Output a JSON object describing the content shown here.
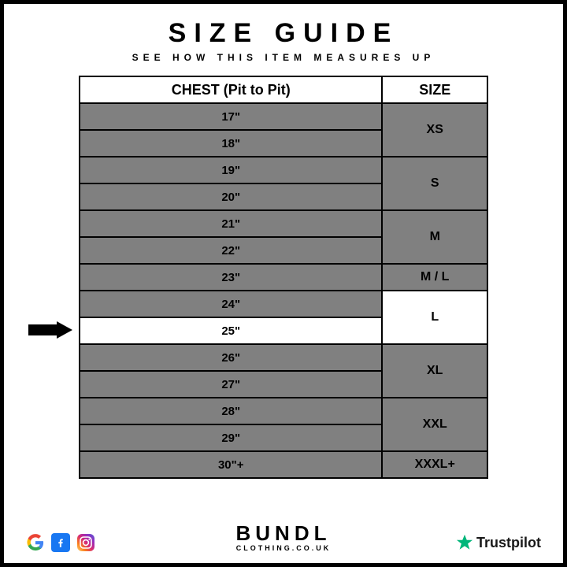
{
  "title": "SIZE GUIDE",
  "subtitle": "SEE HOW THIS ITEM MEASURES UP",
  "table": {
    "headers": {
      "chest": "CHEST (Pit to Pit)",
      "size": "SIZE"
    },
    "colors": {
      "cell_bg": "#808080",
      "highlight_bg": "#ffffff",
      "border": "#000000",
      "text": "#000000"
    },
    "highlight_row_index": 8,
    "rows": [
      {
        "chest": "17\"",
        "size": "XS",
        "size_rowspan": 2
      },
      {
        "chest": "18\""
      },
      {
        "chest": "19\"",
        "size": "S",
        "size_rowspan": 2
      },
      {
        "chest": "20\""
      },
      {
        "chest": "21\"",
        "size": "M",
        "size_rowspan": 2
      },
      {
        "chest": "22\""
      },
      {
        "chest": "23\"",
        "size": "M / L",
        "size_rowspan": 1
      },
      {
        "chest": "24\"",
        "size": "L",
        "size_rowspan": 2,
        "size_highlight": true
      },
      {
        "chest": "25\"",
        "highlight": true
      },
      {
        "chest": "26\"",
        "size": "XL",
        "size_rowspan": 2
      },
      {
        "chest": "27\""
      },
      {
        "chest": "28\"",
        "size": "XXL",
        "size_rowspan": 2
      },
      {
        "chest": "29\""
      },
      {
        "chest": "30\"+",
        "size": "XXXL+",
        "size_rowspan": 1
      }
    ]
  },
  "brand": {
    "line1": "BUNDL",
    "line2": "CLOTHING.CO.UK"
  },
  "trustpilot": {
    "label": "Trustpilot",
    "star_color": "#00b67a"
  },
  "socials": {
    "google": {
      "colors": [
        "#4285F4",
        "#EA4335",
        "#FBBC05",
        "#34A853"
      ]
    },
    "facebook": {
      "bg": "#1877F2",
      "fg": "#ffffff"
    },
    "instagram": {
      "stops": [
        "#feda75",
        "#fa7e1e",
        "#d62976",
        "#962fbf",
        "#4f5bd5"
      ]
    }
  }
}
